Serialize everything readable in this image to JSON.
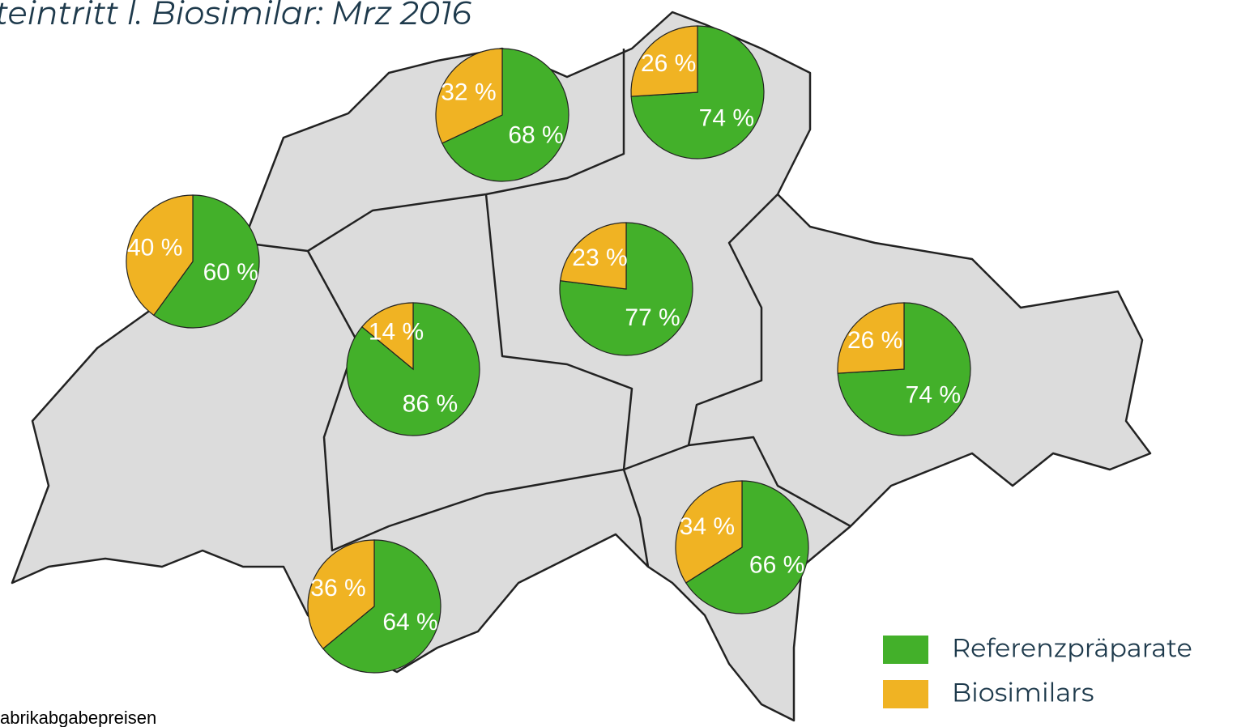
{
  "chart_data": {
    "type": "pie",
    "title": "teintritt l. Biosimilar: Mrz 2016",
    "note": "abrikabgabepreisen",
    "series": [
      {
        "name": "Referenzpräparate",
        "color": "#43b02a",
        "values": [
          68,
          74,
          60,
          86,
          77,
          74,
          66,
          64
        ],
        "value_labels": [
          "68 %",
          "74 %",
          "60 %",
          "86 %",
          "77 %",
          "74 %",
          "66 %",
          "64 %"
        ]
      },
      {
        "name": "Biosimilars",
        "color": "#f0b323",
        "values": [
          32,
          26,
          40,
          14,
          23,
          26,
          34,
          36
        ],
        "value_labels": [
          "32 %",
          "26 %",
          "40 %",
          "14 %",
          "23 %",
          "26 %",
          "34 %",
          "36 %"
        ]
      }
    ]
  }
}
